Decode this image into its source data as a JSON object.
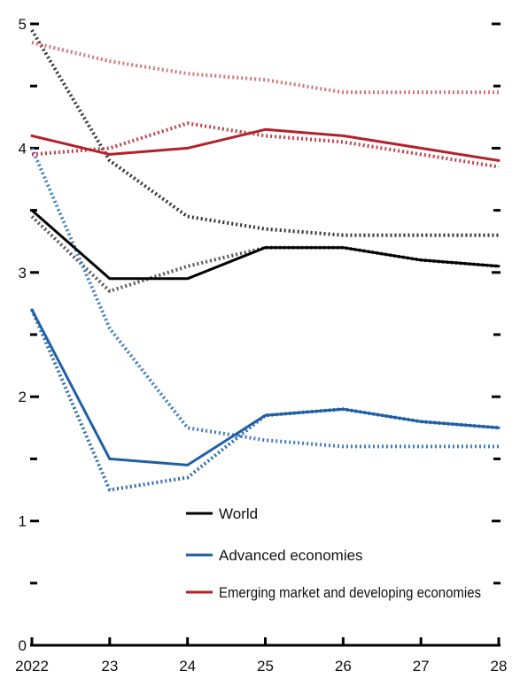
{
  "chart_data": {
    "type": "line",
    "x": [
      "2022",
      "23",
      "24",
      "25",
      "26",
      "27",
      "28"
    ],
    "ylim": [
      0,
      5
    ],
    "y_ticks_labeled": [
      "0",
      "1",
      "2",
      "3",
      "4",
      "5"
    ],
    "y_ticks_minor": [
      0.5,
      1.5,
      2.5,
      3.5,
      4.5
    ],
    "grid": false,
    "legend_placement": "bottom-center",
    "series": [
      {
        "name": "World",
        "key": "world_solid",
        "style": "solid",
        "color": "#000000",
        "values": [
          3.5,
          2.95,
          2.95,
          3.2,
          3.2,
          3.1,
          3.05
        ]
      },
      {
        "name": "",
        "key": "world_dash1",
        "style": "dotted",
        "color": "#555555",
        "values": [
          3.45,
          2.85,
          3.05,
          3.2,
          3.2,
          3.1,
          3.05
        ]
      },
      {
        "name": "",
        "key": "world_dash2",
        "style": "dotted",
        "color": "#333333",
        "values": [
          4.95,
          3.9,
          3.45,
          3.35,
          3.3,
          3.3,
          3.3
        ]
      },
      {
        "name": "Advanced economies",
        "key": "adv_solid",
        "style": "solid",
        "color": "#1f5fa8",
        "values": [
          2.7,
          1.5,
          1.45,
          1.85,
          1.9,
          1.8,
          1.75
        ]
      },
      {
        "name": "",
        "key": "adv_dash1",
        "style": "dotted",
        "color": "#2b6cb0",
        "values": [
          2.7,
          1.25,
          1.35,
          1.85,
          1.9,
          1.8,
          1.75
        ]
      },
      {
        "name": "",
        "key": "adv_dash2",
        "style": "dotted",
        "color": "#3d7cc7",
        "values": [
          4.0,
          2.55,
          1.75,
          1.65,
          1.6,
          1.6,
          1.6
        ]
      },
      {
        "name": "Emerging market and developing economies",
        "key": "eme_solid",
        "style": "solid",
        "color": "#b3202a",
        "values": [
          4.1,
          3.95,
          4.0,
          4.15,
          4.1,
          4.0,
          3.9
        ]
      },
      {
        "name": "",
        "key": "eme_dash1",
        "style": "dotted",
        "color": "#c0404a",
        "values": [
          3.95,
          4.0,
          4.2,
          4.1,
          4.05,
          3.95,
          3.85
        ]
      },
      {
        "name": "",
        "key": "eme_dash2",
        "style": "dotted",
        "color": "#d4737a",
        "values": [
          4.85,
          4.7,
          4.6,
          4.55,
          4.45,
          4.45,
          4.45
        ]
      }
    ]
  },
  "legend": [
    {
      "label": "World",
      "color": "#000000"
    },
    {
      "label": "Advanced economies",
      "color": "#1f5fa8"
    },
    {
      "label": "Emerging market and developing economies",
      "color": "#b3202a"
    }
  ]
}
